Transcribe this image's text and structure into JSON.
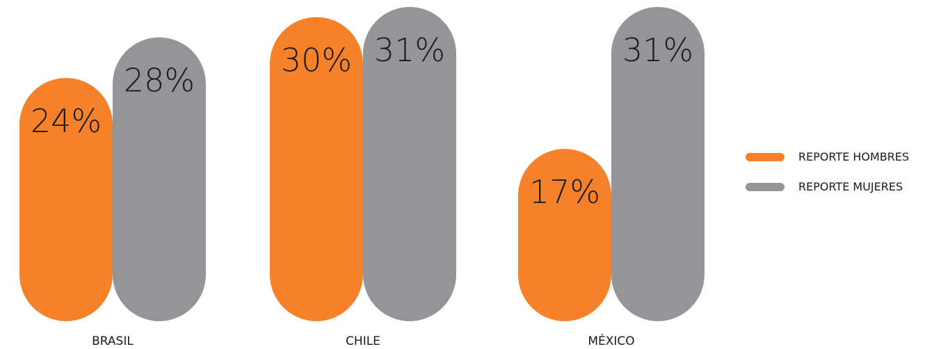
{
  "colors": {
    "hombres": "#f5822a",
    "mujeres": "#939598"
  },
  "chart_data": {
    "type": "bar",
    "categories": [
      "BRASIL",
      "CHILE",
      "MÉXICO"
    ],
    "series": [
      {
        "name": "REPORTE HOMBRES",
        "values": [
          24,
          30,
          17
        ],
        "labels": [
          "24%",
          "30%",
          "17%"
        ]
      },
      {
        "name": "REPORTE MUJERES",
        "values": [
          28,
          31,
          31
        ],
        "labels": [
          "28%",
          "31%",
          "31%"
        ]
      }
    ],
    "ylim": [
      0,
      31
    ],
    "legend_position": "right"
  }
}
